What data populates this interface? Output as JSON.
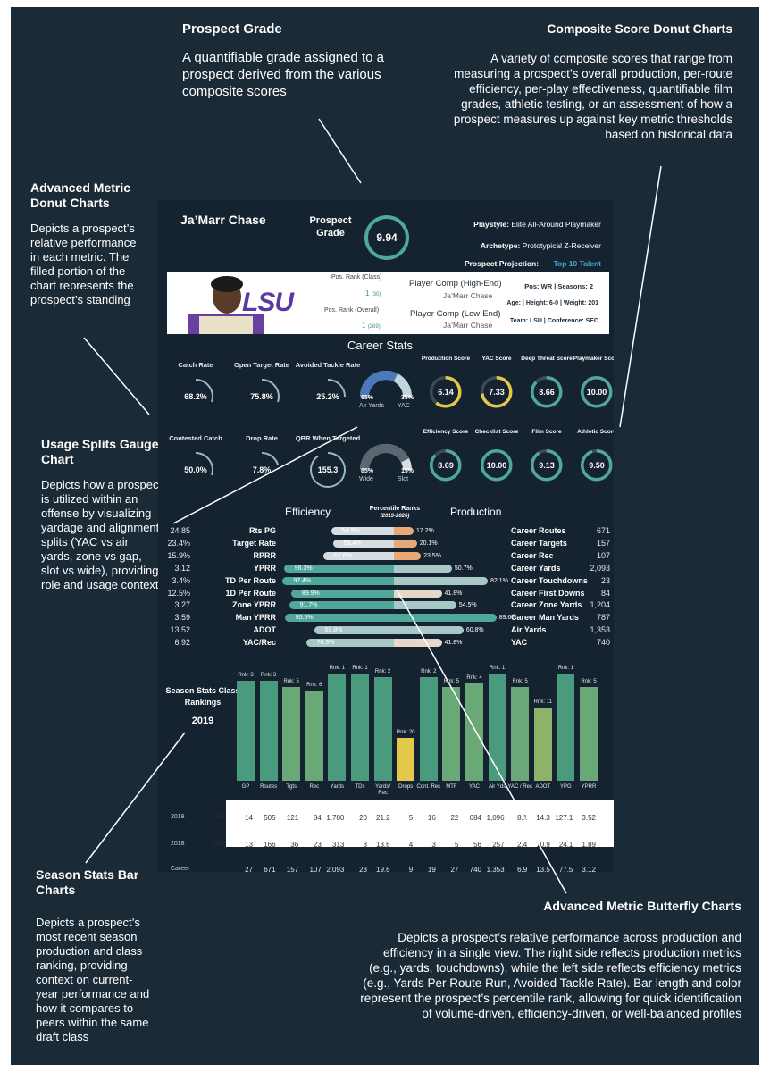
{
  "annotations": {
    "prospect_grade": {
      "title": "Prospect Grade",
      "text": "A quantifiable grade assigned to a prospect derived from the various composite scores"
    },
    "composite": {
      "title": "Composite Score Donut Charts",
      "text": "A variety of composite scores that range from measuring a prospect’s overall production, per-route efficiency, per-play effectiveness, quantifiable film grades, athletic testing, or an assessment of how a prospect measures up against key metric thresholds based on historical data"
    },
    "advanced_donut": {
      "title": "Advanced Metric Donut Charts",
      "text": "Depicts a prospect’s relative performance in each metric. The filled portion of the chart represents the prospect’s standing"
    },
    "usage": {
      "title": "Usage Splits Gauge Chart",
      "text": "Depicts how a prospect is utilized within an offense by visualizing yardage and alignment splits (YAC vs air yards, zone vs gap, slot vs wide), providing role and usage context"
    },
    "season": {
      "title": "Season Stats Bar Charts",
      "text": "Depicts a prospect’s most recent season production and class ranking, providing context on current-year performance and how it compares to peers within the same draft class"
    },
    "butterfly": {
      "title": "Advanced Metric Butterfly Charts",
      "text": "Depicts a prospect’s relative performance across production and efficiency in a single view. The right side reflects production metrics (e.g., yards, touchdowns), while the left side reflects efficiency metrics (e.g., Yards Per Route Run, Avoided Tackle Rate). Bar length and color represent the prospect’s percentile rank, allowing for quick identification of volume-driven, efficiency-driven, or well-balanced profiles"
    }
  },
  "card": {
    "name": "Ja’Marr Chase",
    "grade_label": "Prospect Grade",
    "grade_value": "9.94",
    "playstyle_label": "Playstyle:",
    "playstyle": "Elite All-Around Playmaker",
    "archetype_label": "Archetype:",
    "archetype": "Prototypical Z-Receiver",
    "projection_label": "Prospect Projection:",
    "projection": "Top 10 Talent",
    "school_logo": "LSU",
    "rank_class_label": "Pos. Rank (Class)",
    "rank_class": "1",
    "rank_class_of": "(30)",
    "rank_overall_label": "Pos. Rank (Overall)",
    "rank_overall": "1",
    "rank_overall_of": "(269)",
    "comp_high_label": "Player Comp (High-End)",
    "comp_high": "Ja’Marr Chase",
    "comp_low_label": "Player Comp (Low-End)",
    "comp_low": "Ja’Marr Chase",
    "bio1": "Pos: WR | Seasons: 2",
    "bio2": "Age: | Height: 6-0 | Weight: 201",
    "bio3": "Team: LSU | Conference: SEC",
    "career_stats_title": "Career Stats",
    "colors": {
      "accent": "#4fa89a",
      "projection": "#4aa3c8",
      "orange": "#e8a878",
      "yellow": "#e4c84a"
    }
  },
  "metric_donuts": [
    {
      "label": "Catch Rate",
      "value": "68.2%",
      "fill": 0.3
    },
    {
      "label": "Open Target Rate",
      "value": "75.8%",
      "fill": 0.3
    },
    {
      "label": "Avoided Tackle Rate",
      "value": "25.2%",
      "fill": 0.25
    },
    {
      "label": "Contested Catch",
      "value": "50.0%",
      "fill": 0.3
    },
    {
      "label": "Drop Rate",
      "value": "7.8%",
      "fill": 0.2
    },
    {
      "label": "QBR When Targeted",
      "value": "155.3",
      "fill": 0.9
    }
  ],
  "gauges": [
    {
      "left_pct": "65%",
      "right_pct": "35%",
      "left_label": "Air Yards",
      "right_label": "YAC",
      "left_fill": 0.65
    },
    {
      "left_pct": "85%",
      "right_pct": "15%",
      "left_label": "Wide",
      "right_label": "Slot",
      "left_fill": 0.85
    }
  ],
  "composite_scores": [
    {
      "label": "Production Score",
      "value": "6.14",
      "fill": 0.61,
      "color": "#e4c84a"
    },
    {
      "label": "YAC Score",
      "value": "7.33",
      "fill": 0.73,
      "color": "#e4c84a"
    },
    {
      "label": "Deep Threat Score",
      "value": "8.66",
      "fill": 0.87,
      "color": "#4fa89a"
    },
    {
      "label": "Playmaker Score",
      "value": "10.00",
      "fill": 1.0,
      "color": "#4fa89a"
    },
    {
      "label": "Efficiency Score",
      "value": "8.69",
      "fill": 0.87,
      "color": "#4fa89a"
    },
    {
      "label": "Checklist Score",
      "value": "10.00",
      "fill": 1.0,
      "color": "#4fa89a"
    },
    {
      "label": "Film Score",
      "value": "9.13",
      "fill": 0.91,
      "color": "#4fa89a"
    },
    {
      "label": "Athletic Score",
      "value": "9.50",
      "fill": 0.95,
      "color": "#4fa89a"
    }
  ],
  "butterfly": {
    "left_title": "Efficiency",
    "center_title": "Percentile Ranks",
    "center_sub": "(2019-2026)",
    "right_title": "Production",
    "rows": [
      {
        "lval": "24.85",
        "metric": "Rts PG",
        "lpct": 54.9,
        "llabel": "54.9%",
        "rpct": 17.2,
        "rlabel": "17.2%",
        "rname": "Career Routes",
        "rval": "671"
      },
      {
        "lval": "23.4%",
        "metric": "Target Rate",
        "lpct": 53.4,
        "llabel": "53.4%",
        "rpct": 20.1,
        "rlabel": "20.1%",
        "rname": "Career Targets",
        "rval": "157"
      },
      {
        "lval": "15.9%",
        "metric": "RPRR",
        "lpct": 61.6,
        "llabel": "61.6%",
        "rpct": 23.5,
        "rlabel": "23.5%",
        "rname": "Career Rec",
        "rval": "107"
      },
      {
        "lval": "3.12",
        "metric": "YPRR",
        "lpct": 96.3,
        "llabel": "96.3%",
        "rpct": 50.7,
        "rlabel": "50.7%",
        "rname": "Career Yards",
        "rval": "2,093"
      },
      {
        "lval": "3.4%",
        "metric": "TD Per Route",
        "lpct": 97.4,
        "llabel": "97.4%",
        "rpct": 82.1,
        "rlabel": "82.1%",
        "rname": "Career Touchdowns",
        "rval": "23"
      },
      {
        "lval": "12.5%",
        "metric": "1D Per Route",
        "lpct": 89.9,
        "llabel": "89.9%",
        "rpct": 41.8,
        "rlabel": "41.8%",
        "rname": "Career First Downs",
        "rval": "84"
      },
      {
        "lval": "3.27",
        "metric": "Zone YPRR",
        "lpct": 91.7,
        "llabel": "91.7%",
        "rpct": 54.5,
        "rlabel": "54.5%",
        "rname": "Career Zone Yards",
        "rval": "1,204"
      },
      {
        "lval": "3.59",
        "metric": "Man YPRR",
        "lpct": 95.5,
        "llabel": "95.5%",
        "rpct": 89.6,
        "rlabel": "89.6%",
        "rname": "Career Man Yards",
        "rval": "787"
      },
      {
        "lval": "13.52",
        "metric": "ADOT",
        "lpct": 69.8,
        "llabel": "69.8%",
        "rpct": 60.8,
        "rlabel": "60.8%",
        "rname": "Air Yards",
        "rval": "1,353"
      },
      {
        "lval": "6.92",
        "metric": "YAC/Rec",
        "lpct": 76.9,
        "llabel": "76.9%",
        "rpct": 41.8,
        "rlabel": "41.8%",
        "rname": "YAC",
        "rval": "740"
      }
    ]
  },
  "season": {
    "title": "Season Stats Class Rankings",
    "year": "2019",
    "chart_data": {
      "type": "bar",
      "categories": [
        "GP",
        "Routes",
        "Tgts",
        "Rec",
        "Yards",
        "TDs",
        "Yards/ Rec",
        "Drops",
        "Cont. Rec",
        "MTF",
        "YAC",
        "Air Yds",
        "YAC / Rec",
        "ADOT",
        "YPG",
        "YPRR"
      ],
      "rank_labels": [
        "Rnk: 3",
        "Rnk: 3",
        "Rnk: 5",
        "Rnk: 6",
        "Rnk: 1",
        "Rnk: 1",
        "Rnk: 2",
        "Rnk: 20",
        "Rnk: 2",
        "Rnk: 5",
        "Rnk: 4",
        "Rnk: 1",
        "Rnk: 5",
        "Rnk: 11",
        "Rnk: 1",
        "Rnk: 5"
      ],
      "ranks": [
        3,
        3,
        5,
        6,
        1,
        1,
        2,
        20,
        2,
        5,
        4,
        1,
        5,
        11,
        1,
        5
      ],
      "title": "Season Stats Class Rankings"
    },
    "table": {
      "rows": [
        {
          "year": "2019",
          "team": "LSU",
          "values": [
            "14",
            "505",
            "121",
            "84",
            "1,780",
            "20",
            "21.2",
            "5",
            "16",
            "22",
            "684",
            "1,096",
            "8.1",
            "14.3",
            "127.1",
            "3.52"
          ]
        },
        {
          "year": "2018",
          "team": "LSU",
          "values": [
            "13",
            "166",
            "36",
            "23",
            "313",
            "3",
            "13.6",
            "4",
            "3",
            "5",
            "56",
            "257",
            "2.4",
            "10.9",
            "24.1",
            "1.89"
          ]
        },
        {
          "year": "Career",
          "team": "",
          "values": [
            "27",
            "671",
            "157",
            "107",
            "2,093",
            "23",
            "19.6",
            "9",
            "19",
            "27",
            "740",
            "1,353",
            "6.9",
            "13.5",
            "77.5",
            "3.12"
          ]
        }
      ]
    }
  }
}
